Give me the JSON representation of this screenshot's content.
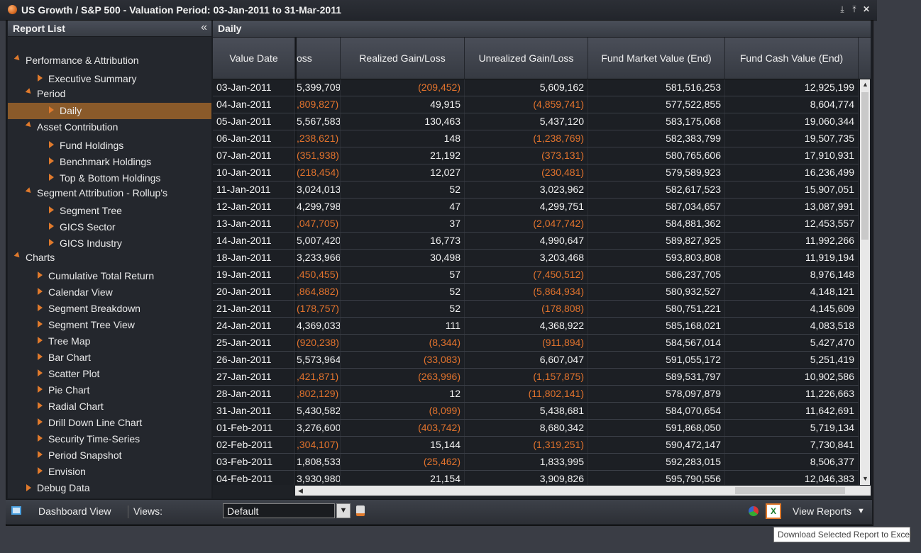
{
  "window": {
    "title": "US Growth / S&P 500 - Valuation Period: 03-Jan-2011 to 31-Mar-2011",
    "buttons": [
      "⤓",
      "⤒",
      "✕"
    ]
  },
  "sidebar": {
    "title": "Report List",
    "collapse_glyph": "«",
    "items": [
      {
        "label": "Performance & Attribution",
        "level": 0,
        "type": "open"
      },
      {
        "label": "Executive Summary",
        "level": 2,
        "type": "leaf"
      },
      {
        "label": "Period",
        "level": 1,
        "type": "open"
      },
      {
        "label": "Daily",
        "level": 3,
        "type": "leaf",
        "selected": true
      },
      {
        "label": "Asset Contribution",
        "level": 1,
        "type": "open"
      },
      {
        "label": "Fund Holdings",
        "level": 3,
        "type": "leaf"
      },
      {
        "label": "Benchmark Holdings",
        "level": 3,
        "type": "leaf"
      },
      {
        "label": "Top & Bottom Holdings",
        "level": 3,
        "type": "leaf"
      },
      {
        "label": "Segment Attribution - Rollup's",
        "level": 1,
        "type": "open"
      },
      {
        "label": "Segment Tree",
        "level": 3,
        "type": "leaf"
      },
      {
        "label": "GICS Sector",
        "level": 3,
        "type": "leaf"
      },
      {
        "label": "GICS Industry",
        "level": 3,
        "type": "leaf"
      },
      {
        "label": "Charts",
        "level": 0,
        "type": "open"
      },
      {
        "label": "Cumulative Total Return",
        "level": 2,
        "type": "leaf"
      },
      {
        "label": "Calendar View",
        "level": 2,
        "type": "leaf"
      },
      {
        "label": "Segment Breakdown",
        "level": 2,
        "type": "leaf"
      },
      {
        "label": "Segment Tree View",
        "level": 2,
        "type": "leaf"
      },
      {
        "label": "Tree Map",
        "level": 2,
        "type": "leaf"
      },
      {
        "label": "Bar Chart",
        "level": 2,
        "type": "leaf"
      },
      {
        "label": "Scatter Plot",
        "level": 2,
        "type": "leaf"
      },
      {
        "label": "Pie Chart",
        "level": 2,
        "type": "leaf"
      },
      {
        "label": "Radial Chart",
        "level": 2,
        "type": "leaf"
      },
      {
        "label": "Drill Down Line Chart",
        "level": 2,
        "type": "leaf"
      },
      {
        "label": "Security Time-Series",
        "level": 2,
        "type": "leaf"
      },
      {
        "label": "Period Snapshot",
        "level": 2,
        "type": "leaf"
      },
      {
        "label": "Envision",
        "level": 2,
        "type": "leaf"
      },
      {
        "label": "Debug Data",
        "level": 1,
        "type": "closed"
      }
    ]
  },
  "grid": {
    "title": "Daily",
    "columns": [
      "Value Date",
      "oss",
      "Realized Gain/Loss",
      "Unrealized Gain/Loss",
      "Fund Market Value (End)",
      "Fund Cash Value (End)"
    ],
    "rows": [
      [
        "03-Jan-2011",
        "5,399,709",
        "(209,452)",
        "5,609,162",
        "581,516,253",
        "12,925,199"
      ],
      [
        "04-Jan-2011",
        ",809,827)",
        "49,915",
        "(4,859,741)",
        "577,522,855",
        "8,604,774"
      ],
      [
        "05-Jan-2011",
        "5,567,583",
        "130,463",
        "5,437,120",
        "583,175,068",
        "19,060,344"
      ],
      [
        "06-Jan-2011",
        ",238,621)",
        "148",
        "(1,238,769)",
        "582,383,799",
        "19,507,735"
      ],
      [
        "07-Jan-2011",
        "(351,938)",
        "21,192",
        "(373,131)",
        "580,765,606",
        "17,910,931"
      ],
      [
        "10-Jan-2011",
        "(218,454)",
        "12,027",
        "(230,481)",
        "579,589,923",
        "16,236,499"
      ],
      [
        "11-Jan-2011",
        "3,024,013",
        "52",
        "3,023,962",
        "582,617,523",
        "15,907,051"
      ],
      [
        "12-Jan-2011",
        "4,299,798",
        "47",
        "4,299,751",
        "587,034,657",
        "13,087,991"
      ],
      [
        "13-Jan-2011",
        ",047,705)",
        "37",
        "(2,047,742)",
        "584,881,362",
        "12,453,557"
      ],
      [
        "14-Jan-2011",
        "5,007,420",
        "16,773",
        "4,990,647",
        "589,827,925",
        "11,992,266"
      ],
      [
        "18-Jan-2011",
        "3,233,966",
        "30,498",
        "3,203,468",
        "593,803,808",
        "11,919,194"
      ],
      [
        "19-Jan-2011",
        ",450,455)",
        "57",
        "(7,450,512)",
        "586,237,705",
        "8,976,148"
      ],
      [
        "20-Jan-2011",
        ",864,882)",
        "52",
        "(5,864,934)",
        "580,932,527",
        "4,148,121"
      ],
      [
        "21-Jan-2011",
        "(178,757)",
        "52",
        "(178,808)",
        "580,751,221",
        "4,145,609"
      ],
      [
        "24-Jan-2011",
        "4,369,033",
        "111",
        "4,368,922",
        "585,168,021",
        "4,083,518"
      ],
      [
        "25-Jan-2011",
        "(920,238)",
        "(8,344)",
        "(911,894)",
        "584,567,014",
        "5,427,470"
      ],
      [
        "26-Jan-2011",
        "5,573,964",
        "(33,083)",
        "6,607,047",
        "591,055,172",
        "5,251,419"
      ],
      [
        "27-Jan-2011",
        ",421,871)",
        "(263,996)",
        "(1,157,875)",
        "589,531,797",
        "10,902,586"
      ],
      [
        "28-Jan-2011",
        ",802,129)",
        "12",
        "(11,802,141)",
        "578,097,879",
        "11,226,663"
      ],
      [
        "31-Jan-2011",
        "5,430,582",
        "(8,099)",
        "5,438,681",
        "584,070,654",
        "11,642,691"
      ],
      [
        "01-Feb-2011",
        "3,276,600",
        "(403,742)",
        "8,680,342",
        "591,868,050",
        "5,719,134"
      ],
      [
        "02-Feb-2011",
        ",304,107)",
        "15,144",
        "(1,319,251)",
        "590,472,147",
        "7,730,841"
      ],
      [
        "03-Feb-2011",
        "1,808,533",
        "(25,462)",
        "1,833,995",
        "592,283,015",
        "8,506,377"
      ],
      [
        "04-Feb-2011",
        "3,930,980",
        "21,154",
        "3,909,826",
        "595,790,556",
        "12,046,383"
      ]
    ]
  },
  "bottombar": {
    "dashboard_label": "Dashboard View",
    "views_label": "Views:",
    "views_selected": "Default",
    "view_reports_label": "View Reports"
  },
  "tooltip": "Download Selected Report to Excel",
  "colors": {
    "negative": "#e2732d",
    "selected": "#8a5a2a",
    "accent": "#e07a2c"
  }
}
